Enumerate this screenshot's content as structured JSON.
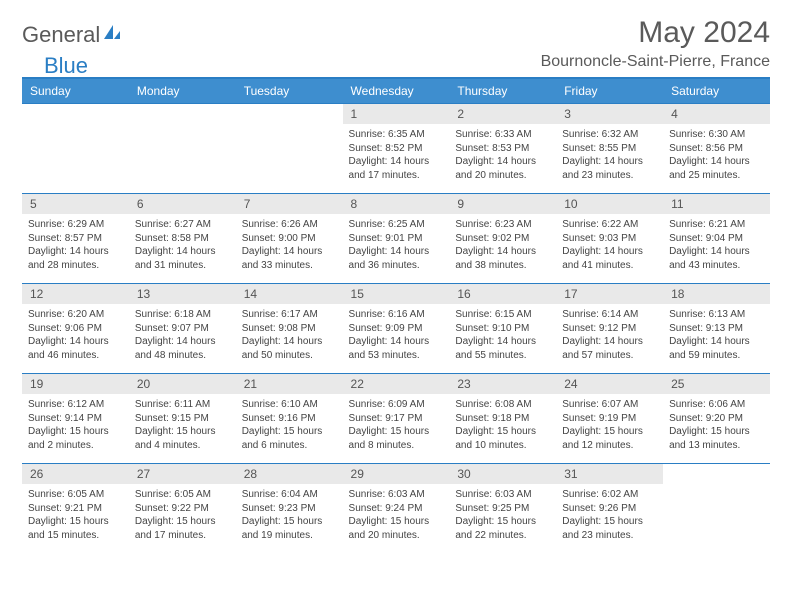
{
  "logo": {
    "general": "General",
    "blue": "Blue"
  },
  "title": "May 2024",
  "location": "Bournoncle-Saint-Pierre, France",
  "header_bg": "#3e8ecf",
  "border_color": "#2a7ec4",
  "daynum_bg": "#e9e9e9",
  "day_headers": [
    "Sunday",
    "Monday",
    "Tuesday",
    "Wednesday",
    "Thursday",
    "Friday",
    "Saturday"
  ],
  "weeks": [
    [
      null,
      null,
      null,
      {
        "n": "1",
        "sr": "6:35 AM",
        "ss": "8:52 PM",
        "dl": "14 hours and 17 minutes."
      },
      {
        "n": "2",
        "sr": "6:33 AM",
        "ss": "8:53 PM",
        "dl": "14 hours and 20 minutes."
      },
      {
        "n": "3",
        "sr": "6:32 AM",
        "ss": "8:55 PM",
        "dl": "14 hours and 23 minutes."
      },
      {
        "n": "4",
        "sr": "6:30 AM",
        "ss": "8:56 PM",
        "dl": "14 hours and 25 minutes."
      }
    ],
    [
      {
        "n": "5",
        "sr": "6:29 AM",
        "ss": "8:57 PM",
        "dl": "14 hours and 28 minutes."
      },
      {
        "n": "6",
        "sr": "6:27 AM",
        "ss": "8:58 PM",
        "dl": "14 hours and 31 minutes."
      },
      {
        "n": "7",
        "sr": "6:26 AM",
        "ss": "9:00 PM",
        "dl": "14 hours and 33 minutes."
      },
      {
        "n": "8",
        "sr": "6:25 AM",
        "ss": "9:01 PM",
        "dl": "14 hours and 36 minutes."
      },
      {
        "n": "9",
        "sr": "6:23 AM",
        "ss": "9:02 PM",
        "dl": "14 hours and 38 minutes."
      },
      {
        "n": "10",
        "sr": "6:22 AM",
        "ss": "9:03 PM",
        "dl": "14 hours and 41 minutes."
      },
      {
        "n": "11",
        "sr": "6:21 AM",
        "ss": "9:04 PM",
        "dl": "14 hours and 43 minutes."
      }
    ],
    [
      {
        "n": "12",
        "sr": "6:20 AM",
        "ss": "9:06 PM",
        "dl": "14 hours and 46 minutes."
      },
      {
        "n": "13",
        "sr": "6:18 AM",
        "ss": "9:07 PM",
        "dl": "14 hours and 48 minutes."
      },
      {
        "n": "14",
        "sr": "6:17 AM",
        "ss": "9:08 PM",
        "dl": "14 hours and 50 minutes."
      },
      {
        "n": "15",
        "sr": "6:16 AM",
        "ss": "9:09 PM",
        "dl": "14 hours and 53 minutes."
      },
      {
        "n": "16",
        "sr": "6:15 AM",
        "ss": "9:10 PM",
        "dl": "14 hours and 55 minutes."
      },
      {
        "n": "17",
        "sr": "6:14 AM",
        "ss": "9:12 PM",
        "dl": "14 hours and 57 minutes."
      },
      {
        "n": "18",
        "sr": "6:13 AM",
        "ss": "9:13 PM",
        "dl": "14 hours and 59 minutes."
      }
    ],
    [
      {
        "n": "19",
        "sr": "6:12 AM",
        "ss": "9:14 PM",
        "dl": "15 hours and 2 minutes."
      },
      {
        "n": "20",
        "sr": "6:11 AM",
        "ss": "9:15 PM",
        "dl": "15 hours and 4 minutes."
      },
      {
        "n": "21",
        "sr": "6:10 AM",
        "ss": "9:16 PM",
        "dl": "15 hours and 6 minutes."
      },
      {
        "n": "22",
        "sr": "6:09 AM",
        "ss": "9:17 PM",
        "dl": "15 hours and 8 minutes."
      },
      {
        "n": "23",
        "sr": "6:08 AM",
        "ss": "9:18 PM",
        "dl": "15 hours and 10 minutes."
      },
      {
        "n": "24",
        "sr": "6:07 AM",
        "ss": "9:19 PM",
        "dl": "15 hours and 12 minutes."
      },
      {
        "n": "25",
        "sr": "6:06 AM",
        "ss": "9:20 PM",
        "dl": "15 hours and 13 minutes."
      }
    ],
    [
      {
        "n": "26",
        "sr": "6:05 AM",
        "ss": "9:21 PM",
        "dl": "15 hours and 15 minutes."
      },
      {
        "n": "27",
        "sr": "6:05 AM",
        "ss": "9:22 PM",
        "dl": "15 hours and 17 minutes."
      },
      {
        "n": "28",
        "sr": "6:04 AM",
        "ss": "9:23 PM",
        "dl": "15 hours and 19 minutes."
      },
      {
        "n": "29",
        "sr": "6:03 AM",
        "ss": "9:24 PM",
        "dl": "15 hours and 20 minutes."
      },
      {
        "n": "30",
        "sr": "6:03 AM",
        "ss": "9:25 PM",
        "dl": "15 hours and 22 minutes."
      },
      {
        "n": "31",
        "sr": "6:02 AM",
        "ss": "9:26 PM",
        "dl": "15 hours and 23 minutes."
      },
      null
    ]
  ],
  "labels": {
    "sunrise": "Sunrise: ",
    "sunset": "Sunset: ",
    "daylight": "Daylight: "
  }
}
